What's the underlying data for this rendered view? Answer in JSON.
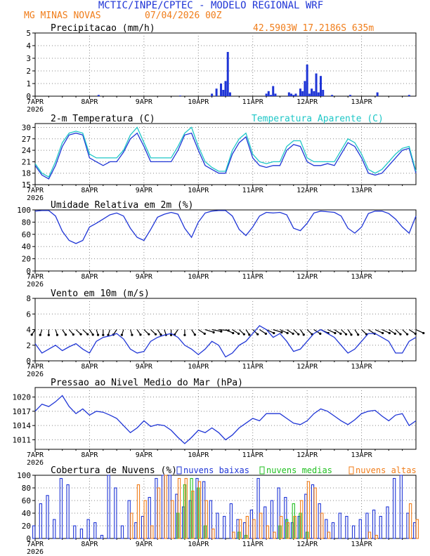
{
  "header": {
    "title": "MCTIC/INPE/CPTEC - MODELO REGIONAL WRF",
    "location": "MG MINAS NOVAS",
    "run": "07/04/2026 00Z",
    "coords": "42.5903W 17.2186S 635m"
  },
  "colors": {
    "blue": "#1f35d6",
    "orange": "#f07d1a",
    "cyan": "#1fc7c7",
    "green": "#22c022",
    "black": "#000000"
  },
  "x_axis": {
    "days": [
      "7APR",
      "8APR",
      "9APR",
      "10APR",
      "11APR",
      "12APR",
      "13APR"
    ],
    "year": "2026",
    "start_hour": 0,
    "end_hour": 168,
    "step_hours": 3
  },
  "chart_data": [
    {
      "id": "precip",
      "type": "bar",
      "title": "Precipitacao (mm/h)",
      "ylim": [
        0,
        5
      ],
      "yticks": [
        0,
        1,
        2,
        3,
        4,
        5
      ],
      "x_hours": [
        28,
        64,
        78,
        80,
        82,
        83,
        84,
        85,
        86,
        102,
        103,
        104,
        105,
        106,
        112,
        113,
        114,
        115,
        117,
        118,
        119,
        120,
        121,
        122,
        123,
        124,
        125,
        126,
        127,
        131,
        139,
        151,
        165
      ],
      "values": [
        0.1,
        0.05,
        0.2,
        0.6,
        1.0,
        0.5,
        1.2,
        3.5,
        0.3,
        0.2,
        0.4,
        0.1,
        0.8,
        0.2,
        0.3,
        0.2,
        0.1,
        0.2,
        0.6,
        0.4,
        1.2,
        2.5,
        0.2,
        0.6,
        0.4,
        1.8,
        0.3,
        1.6,
        0.5,
        0.1,
        0.1,
        0.3,
        0.1
      ]
    },
    {
      "id": "temp",
      "type": "line",
      "title": "2-m Temperatura (C)",
      "legend": "Temperatura Aparente (C)",
      "ylim": [
        15,
        31
      ],
      "yticks": [
        15,
        18,
        21,
        24,
        27,
        30
      ],
      "x_hours": [
        0,
        3,
        6,
        9,
        12,
        15,
        18,
        21,
        24,
        27,
        30,
        33,
        36,
        39,
        42,
        45,
        48,
        51,
        54,
        57,
        60,
        63,
        66,
        69,
        72,
        75,
        78,
        81,
        84,
        87,
        90,
        93,
        96,
        99,
        102,
        105,
        108,
        111,
        114,
        117,
        120,
        123,
        126,
        129,
        132,
        135,
        138,
        141,
        144,
        147,
        150,
        153,
        156,
        159,
        162,
        165,
        168
      ],
      "series": [
        {
          "name": "2-m Temperatura",
          "color": "blue",
          "values": [
            20,
            17.5,
            16.5,
            20,
            25,
            28,
            28.5,
            28,
            22,
            21,
            20,
            21,
            21,
            23.5,
            27,
            28.5,
            25,
            21,
            21,
            21,
            21,
            24,
            28,
            28.5,
            24,
            20,
            19,
            18,
            18,
            23,
            26,
            27.5,
            22,
            20,
            19.5,
            20,
            20,
            24,
            25.5,
            25,
            21,
            20,
            20,
            20.5,
            20,
            23,
            26,
            25,
            22,
            18,
            17.5,
            18,
            20,
            22,
            24,
            24.5,
            18
          ]
        },
        {
          "name": "Temperatura Aparente",
          "color": "cyan",
          "values": [
            20.5,
            18,
            17,
            21,
            26,
            28.5,
            29,
            28.5,
            23,
            22,
            22,
            22,
            22,
            24,
            28,
            30,
            26,
            22,
            22,
            22,
            22,
            25,
            28.5,
            30,
            25,
            21,
            19.5,
            18.5,
            18.5,
            24,
            27,
            28.5,
            23,
            21,
            20.5,
            21,
            21,
            25,
            26.5,
            26.5,
            22,
            21,
            21,
            21,
            21,
            24,
            27,
            26,
            23,
            19,
            18,
            19,
            21,
            23,
            24.5,
            25,
            18.5
          ]
        }
      ]
    },
    {
      "id": "rh",
      "type": "line",
      "title": "Umidade Relativa em 2m (%)",
      "ylim": [
        0,
        100
      ],
      "yticks": [
        0,
        20,
        40,
        60,
        80,
        100
      ],
      "x_hours": [
        0,
        3,
        6,
        9,
        12,
        15,
        18,
        21,
        24,
        27,
        30,
        33,
        36,
        39,
        42,
        45,
        48,
        51,
        54,
        57,
        60,
        63,
        66,
        69,
        72,
        75,
        78,
        81,
        84,
        87,
        90,
        93,
        96,
        99,
        102,
        105,
        108,
        111,
        114,
        117,
        120,
        123,
        126,
        129,
        132,
        135,
        138,
        141,
        144,
        147,
        150,
        153,
        156,
        159,
        162,
        165,
        168
      ],
      "series": [
        {
          "name": "Umidade Relativa",
          "color": "blue",
          "values": [
            98,
            99,
            99,
            90,
            65,
            50,
            45,
            50,
            72,
            78,
            85,
            92,
            95,
            90,
            70,
            55,
            50,
            68,
            88,
            93,
            96,
            93,
            70,
            55,
            80,
            95,
            98,
            99,
            99,
            90,
            68,
            58,
            72,
            90,
            96,
            95,
            96,
            92,
            70,
            66,
            78,
            95,
            98,
            97,
            96,
            90,
            70,
            62,
            72,
            94,
            98,
            98,
            94,
            85,
            72,
            62,
            90
          ]
        }
      ]
    },
    {
      "id": "wind",
      "type": "line",
      "title": "Vento em 10m (m/s)",
      "ylim": [
        0,
        8
      ],
      "yticks": [
        0,
        2,
        4,
        6,
        8
      ],
      "x_hours": [
        0,
        3,
        6,
        9,
        12,
        15,
        18,
        21,
        24,
        27,
        30,
        33,
        36,
        39,
        42,
        45,
        48,
        51,
        54,
        57,
        60,
        63,
        66,
        69,
        72,
        75,
        78,
        81,
        84,
        87,
        90,
        93,
        96,
        99,
        102,
        105,
        108,
        111,
        114,
        117,
        120,
        123,
        126,
        129,
        132,
        135,
        138,
        141,
        144,
        147,
        150,
        153,
        156,
        159,
        162,
        165,
        168
      ],
      "series": [
        {
          "name": "Vento 10m",
          "color": "blue",
          "values": [
            2.2,
            1.0,
            1.5,
            2.0,
            1.3,
            1.8,
            2.2,
            1.5,
            1.0,
            2.5,
            3.0,
            3.2,
            3.5,
            2.8,
            1.5,
            1.0,
            1.2,
            2.5,
            3.0,
            3.3,
            3.5,
            3.0,
            2.0,
            1.5,
            0.8,
            1.5,
            2.5,
            2.0,
            0.5,
            1.0,
            2.0,
            2.5,
            3.5,
            4.5,
            4.0,
            3.0,
            3.5,
            2.5,
            1.2,
            1.5,
            2.5,
            3.5,
            4.0,
            3.5,
            3.0,
            2.0,
            1.0,
            1.5,
            2.5,
            3.5,
            3.5,
            3.0,
            2.5,
            1.0,
            1.0,
            2.5,
            3.0
          ]
        }
      ],
      "barbs": {
        "note": "wind direction arrows plotted along speed 4 m/s",
        "x_hours": [
          0,
          3,
          6,
          9,
          12,
          15,
          18,
          21,
          24,
          27,
          30,
          33,
          36,
          39,
          42,
          45,
          48,
          51,
          54,
          57,
          60,
          63,
          66,
          69,
          72,
          75,
          78,
          81,
          84,
          87,
          90,
          93,
          96,
          99,
          102,
          105,
          108,
          111,
          114,
          117,
          120,
          123,
          126,
          129,
          132,
          135,
          138,
          141,
          144,
          147,
          150,
          153,
          156,
          159,
          162,
          165,
          168
        ],
        "dir_deg": [
          200,
          190,
          180,
          170,
          160,
          155,
          150,
          150,
          160,
          170,
          180,
          190,
          200,
          190,
          170,
          160,
          150,
          150,
          160,
          170,
          180,
          200,
          180,
          160,
          140,
          120,
          110,
          100,
          130,
          140,
          150,
          160,
          150,
          140,
          130,
          120,
          130,
          140,
          150,
          160,
          150,
          140,
          130,
          130,
          140,
          150,
          160,
          160,
          150,
          140,
          130,
          130,
          140,
          150,
          150,
          140,
          130
        ],
        "ylevel": 4
      }
    },
    {
      "id": "pressure",
      "type": "line",
      "title": "Pressao ao Nivel Medio do Mar (hPa)",
      "ylim": [
        1009,
        1022
      ],
      "yticks": [
        1011,
        1014,
        1017,
        1020
      ],
      "x_hours": [
        0,
        3,
        6,
        9,
        12,
        15,
        18,
        21,
        24,
        27,
        30,
        33,
        36,
        39,
        42,
        45,
        48,
        51,
        54,
        57,
        60,
        63,
        66,
        69,
        72,
        75,
        78,
        81,
        84,
        87,
        90,
        93,
        96,
        99,
        102,
        105,
        108,
        111,
        114,
        117,
        120,
        123,
        126,
        129,
        132,
        135,
        138,
        141,
        144,
        147,
        150,
        153,
        156,
        159,
        162,
        165,
        168
      ],
      "series": [
        {
          "name": "Pressao",
          "color": "blue",
          "values": [
            1017,
            1018.5,
            1018,
            1019,
            1020.3,
            1018,
            1016.5,
            1017.5,
            1016.2,
            1017,
            1016.8,
            1016.2,
            1015.5,
            1014,
            1012.5,
            1013.5,
            1015,
            1013.8,
            1014.2,
            1014,
            1013,
            1011.5,
            1010.2,
            1011.5,
            1013,
            1012.5,
            1013.5,
            1012.5,
            1011,
            1012,
            1013.5,
            1014.5,
            1015.5,
            1015,
            1016.5,
            1016.5,
            1016.5,
            1015.5,
            1014.5,
            1014.2,
            1015,
            1016.5,
            1017.5,
            1017,
            1016,
            1015,
            1014.2,
            1015.2,
            1016.5,
            1017,
            1017.2,
            1016,
            1015,
            1016.2,
            1016.5,
            1014,
            1015
          ]
        }
      ]
    },
    {
      "id": "clouds",
      "type": "bar",
      "title": "Cobertura de Nuvens (%)",
      "ylim": [
        0,
        100
      ],
      "yticks": [
        0,
        20,
        40,
        60,
        80,
        100
      ],
      "legend": [
        "nuvens baixas",
        "nuvens medias",
        "nuvens altas"
      ],
      "x_hours": [
        0,
        3,
        6,
        9,
        12,
        15,
        18,
        21,
        24,
        27,
        30,
        33,
        36,
        39,
        42,
        45,
        48,
        51,
        54,
        57,
        60,
        63,
        66,
        69,
        72,
        75,
        78,
        81,
        84,
        87,
        90,
        93,
        96,
        99,
        102,
        105,
        108,
        111,
        114,
        117,
        120,
        123,
        126,
        129,
        132,
        135,
        138,
        141,
        144,
        147,
        150,
        153,
        156,
        159,
        162,
        165,
        168
      ],
      "series": [
        {
          "name": "nuvens baixas",
          "color": "blue",
          "values": [
            20,
            55,
            68,
            30,
            95,
            85,
            20,
            15,
            30,
            25,
            5,
            100,
            80,
            20,
            60,
            25,
            35,
            65,
            95,
            100,
            100,
            70,
            50,
            60,
            95,
            90,
            60,
            40,
            35,
            55,
            30,
            25,
            45,
            95,
            50,
            60,
            80,
            65,
            25,
            35,
            70,
            85,
            55,
            30,
            25,
            40,
            35,
            20,
            30,
            40,
            45,
            35,
            50,
            95,
            100,
            40,
            25
          ]
        },
        {
          "name": "nuvens medias",
          "color": "green",
          "values": [
            0,
            0,
            0,
            0,
            0,
            0,
            0,
            0,
            0,
            0,
            0,
            0,
            0,
            0,
            0,
            0,
            0,
            0,
            0,
            0,
            0,
            40,
            85,
            95,
            80,
            20,
            0,
            0,
            0,
            0,
            10,
            5,
            0,
            0,
            0,
            0,
            20,
            30,
            55,
            40,
            10,
            0,
            0,
            0,
            0,
            0,
            0,
            0,
            0,
            0,
            0,
            0,
            0,
            0,
            0,
            0,
            0
          ]
        },
        {
          "name": "nuvens altas",
          "color": "orange",
          "values": [
            0,
            0,
            0,
            0,
            0,
            0,
            0,
            0,
            0,
            0,
            0,
            0,
            0,
            0,
            40,
            85,
            60,
            20,
            80,
            100,
            60,
            95,
            95,
            75,
            90,
            60,
            15,
            0,
            0,
            10,
            30,
            35,
            30,
            40,
            20,
            10,
            35,
            25,
            35,
            60,
            90,
            80,
            40,
            10,
            0,
            0,
            0,
            0,
            0,
            10,
            5,
            0,
            0,
            0,
            0,
            55,
            30
          ]
        }
      ]
    }
  ]
}
